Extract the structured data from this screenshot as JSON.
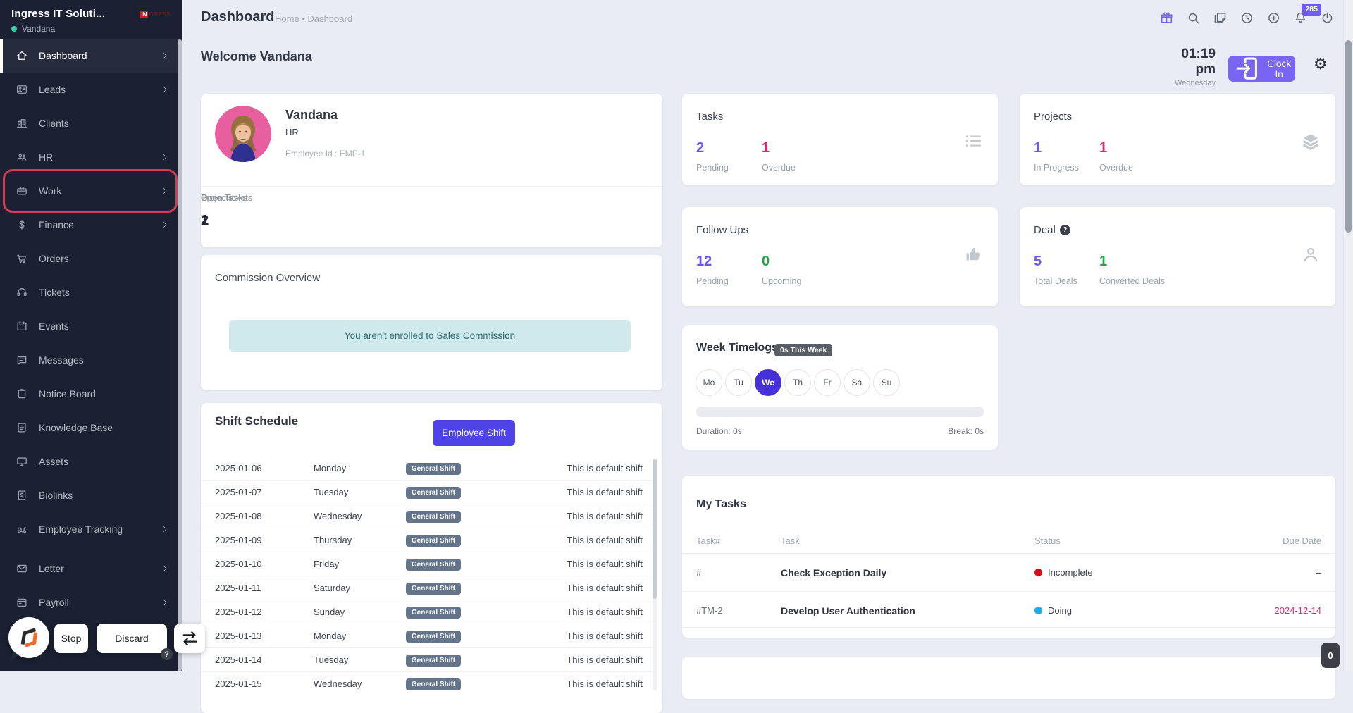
{
  "app": {
    "company": "Ingress IT Soluti...",
    "user": "Vandana",
    "logo": {
      "primary": "IN",
      "secondary": "GRESS"
    }
  },
  "sidebar": {
    "items": [
      {
        "label": "Dashboard",
        "icon": "home",
        "chevron": true,
        "active": true
      },
      {
        "label": "Leads",
        "icon": "id-card",
        "chevron": true
      },
      {
        "label": "Clients",
        "icon": "building"
      },
      {
        "label": "HR",
        "icon": "users",
        "chevron": true
      },
      {
        "label": "Work",
        "icon": "briefcase",
        "chevron": true,
        "highlighted": true
      },
      {
        "label": "Finance",
        "icon": "dollar",
        "chevron": true
      },
      {
        "label": "Orders",
        "icon": "cart"
      },
      {
        "label": "Tickets",
        "icon": "headset"
      },
      {
        "label": "Events",
        "icon": "calendar"
      },
      {
        "label": "Messages",
        "icon": "chat"
      },
      {
        "label": "Notice Board",
        "icon": "clipboard"
      },
      {
        "label": "Knowledge Base",
        "icon": "document"
      },
      {
        "label": "Assets",
        "icon": "monitor"
      },
      {
        "label": "Biolinks",
        "icon": "contact-card"
      },
      {
        "label": "Employee Tracking",
        "icon": "scooter",
        "chevron": true
      },
      {
        "label": "Letter",
        "icon": "envelope",
        "chevron": true,
        "gap_before": true
      },
      {
        "label": "Payroll",
        "icon": "payroll",
        "chevron": true
      }
    ]
  },
  "header": {
    "title": "Dashboard",
    "breadcrumb": "Home • Dashboard",
    "icons": [
      {
        "name": "gift",
        "accent": true
      },
      {
        "name": "search"
      },
      {
        "name": "notes"
      },
      {
        "name": "history-clock"
      },
      {
        "name": "plus-circle"
      },
      {
        "name": "bell",
        "badge": "285"
      },
      {
        "name": "power"
      }
    ]
  },
  "welcome": {
    "title": "Welcome Vandana",
    "time": "01:19 pm",
    "day": "Wednesday",
    "clock_in_label": "Clock In"
  },
  "profile": {
    "name": "Vandana",
    "designation": "HR",
    "employee_id": "Employee Id : EMP-1",
    "stats": [
      {
        "label": "Open Tasks",
        "value": "2"
      },
      {
        "label": "Projects",
        "value": "1"
      },
      {
        "label": "Open Tickets",
        "value": "1"
      }
    ]
  },
  "commission": {
    "title": "Commission Overview",
    "alert": "You aren't enrolled to Sales Commission"
  },
  "shift": {
    "title": "Shift Schedule",
    "button_label": "Employee Shift",
    "rows": [
      {
        "date": "2025-01-06",
        "day": "Monday",
        "shift": "General Shift",
        "note": "This is default shift"
      },
      {
        "date": "2025-01-07",
        "day": "Tuesday",
        "shift": "General Shift",
        "note": "This is default shift"
      },
      {
        "date": "2025-01-08",
        "day": "Wednesday",
        "shift": "General Shift",
        "note": "This is default shift"
      },
      {
        "date": "2025-01-09",
        "day": "Thursday",
        "shift": "General Shift",
        "note": "This is default shift"
      },
      {
        "date": "2025-01-10",
        "day": "Friday",
        "shift": "General Shift",
        "note": "This is default shift"
      },
      {
        "date": "2025-01-11",
        "day": "Saturday",
        "shift": "General Shift",
        "note": "This is default shift"
      },
      {
        "date": "2025-01-12",
        "day": "Sunday",
        "shift": "General Shift",
        "note": "This is default shift"
      },
      {
        "date": "2025-01-13",
        "day": "Monday",
        "shift": "General Shift",
        "note": "This is default shift"
      },
      {
        "date": "2025-01-14",
        "day": "Tuesday",
        "shift": "General Shift",
        "note": "This is default shift"
      },
      {
        "date": "2025-01-15",
        "day": "Wednesday",
        "shift": "General Shift",
        "note": "This is default shift"
      }
    ]
  },
  "stat_cards": [
    {
      "title": "Tasks",
      "icon": "list",
      "metrics": [
        {
          "value": "2",
          "label": "Pending",
          "color": "#6957f2"
        },
        {
          "value": "1",
          "label": "Overdue",
          "color": "#e0246d"
        }
      ]
    },
    {
      "title": "Projects",
      "icon": "layers",
      "metrics": [
        {
          "value": "1",
          "label": "In Progress",
          "color": "#6957f2"
        },
        {
          "value": "1",
          "label": "Overdue",
          "color": "#e0246d"
        }
      ]
    },
    {
      "title": "Follow Ups",
      "icon": "thumbs-up",
      "metrics": [
        {
          "value": "12",
          "label": "Pending",
          "color": "#6957f2"
        },
        {
          "value": "0",
          "label": "Upcoming",
          "color": "#22a447"
        }
      ]
    },
    {
      "title": "Deal",
      "icon": "person",
      "help": true,
      "metrics": [
        {
          "value": "5",
          "label": "Total Deals",
          "color": "#6957f2"
        },
        {
          "value": "1",
          "label": "Converted Deals",
          "color": "#22a447"
        }
      ]
    }
  ],
  "timelogs": {
    "title": "Week Timelogs",
    "badge": "0s This Week",
    "days": [
      {
        "label": "Mo"
      },
      {
        "label": "Tu"
      },
      {
        "label": "We",
        "active": true
      },
      {
        "label": "Th"
      },
      {
        "label": "Fr"
      },
      {
        "label": "Sa"
      },
      {
        "label": "Su"
      }
    ],
    "duration": "Duration: 0s",
    "break": "Break: 0s"
  },
  "my_tasks": {
    "title": "My Tasks",
    "columns": [
      "Task#",
      "Task",
      "Status",
      "Due Date"
    ],
    "rows": [
      {
        "id": "#",
        "task": "Check Exception Daily",
        "status": "Incomplete",
        "status_color": "#d50c18",
        "due": "--",
        "due_color": "#3a404e"
      },
      {
        "id": "#TM-2",
        "task": "Develop User Authentication",
        "status": "Doing",
        "status_color": "#19aef0",
        "due": "2024-12-14",
        "due_color": "#e0246d"
      }
    ]
  },
  "overlay": {
    "stop_label": "Stop",
    "discard_label": "Discard",
    "help": "?",
    "counter": "0"
  }
}
